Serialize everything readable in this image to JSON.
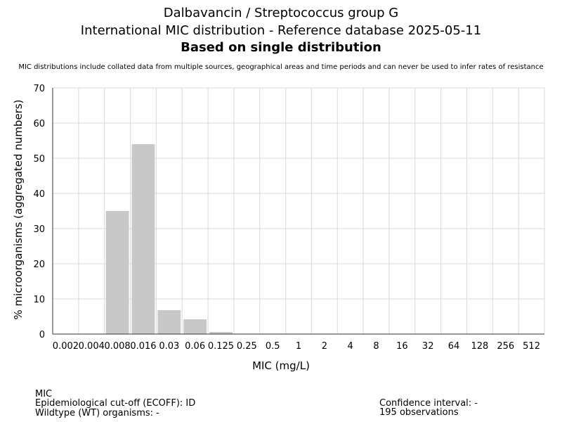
{
  "header": {
    "title_line1": "Dalbavancin / Streptococcus group G",
    "title_line2": "International MIC distribution - Reference database 2025-05-11",
    "title_line3": "Based on single distribution",
    "note": "MIC distributions include collated data from multiple sources, geographical areas and time periods and can never be used to infer rates of resistance"
  },
  "chart_data": {
    "type": "bar",
    "categories": [
      "0.002",
      "0.004",
      "0.008",
      "0.016",
      "0.03",
      "0.06",
      "0.125",
      "0.25",
      "0.5",
      "1",
      "2",
      "4",
      "8",
      "16",
      "32",
      "64",
      "128",
      "256",
      "512"
    ],
    "values": [
      0,
      0,
      35,
      54,
      6.8,
      4.2,
      0.6,
      0,
      0,
      0,
      0,
      0,
      0,
      0,
      0,
      0,
      0,
      0,
      0
    ],
    "xlabel": "MIC (mg/L)",
    "ylabel": "% microorganisms (aggregated numbers)",
    "ylim": [
      0,
      70
    ],
    "yticks": [
      0,
      10,
      20,
      30,
      40,
      50,
      60,
      70
    ],
    "grid": true,
    "bar_color": "#c8c8c8",
    "grid_color": "#d9d9d9"
  },
  "footer": {
    "line_mic": "MIC",
    "line_ecoff": "Epidemiological cut-off (ECOFF): ID",
    "line_wt": "Wildtype (WT) organisms:  -",
    "confidence": "Confidence interval: -",
    "observations": "195 observations"
  }
}
